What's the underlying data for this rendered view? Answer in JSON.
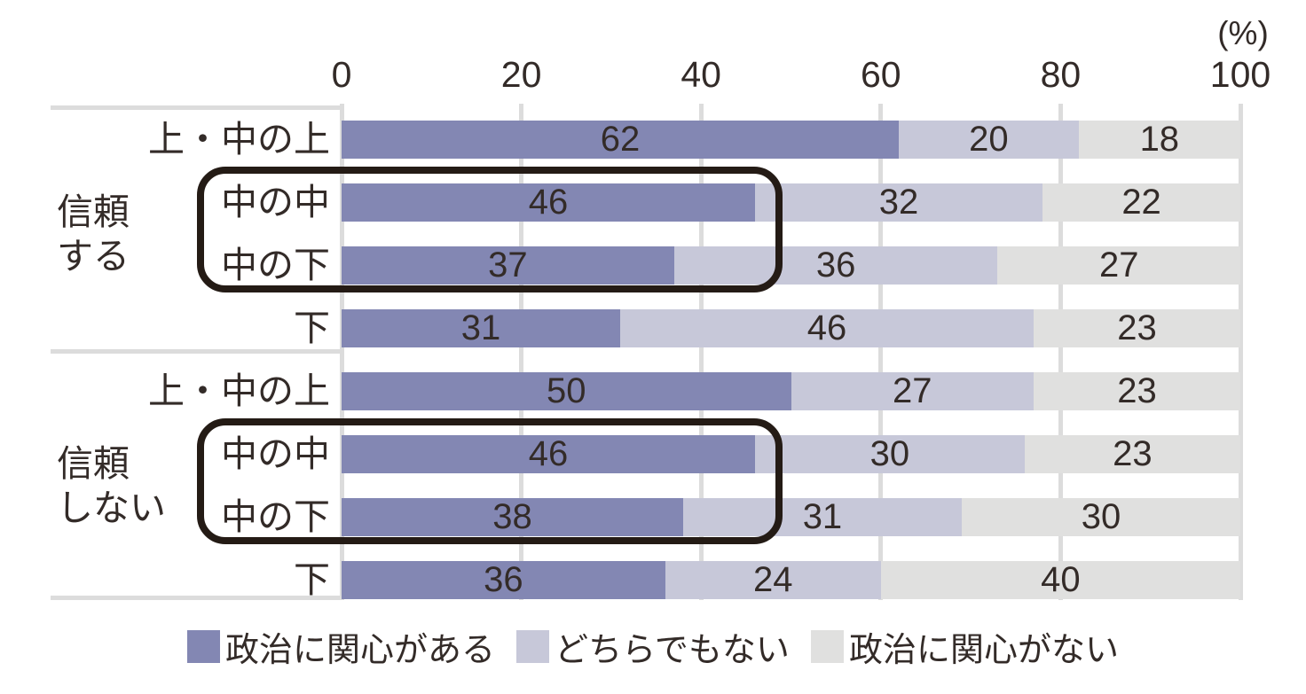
{
  "unit_label": "(%)",
  "colors": {
    "series": [
      "#8387b3",
      "#c7c8d9",
      "#e0e0df"
    ],
    "grid_line": "#dcdcdc",
    "table_line": "#dcdcdc",
    "highlight_box": "#241b15",
    "text": "#332b28",
    "background": "#ffffff"
  },
  "axis": {
    "tick_labels": [
      "0",
      "20",
      "40",
      "60",
      "80",
      "100"
    ]
  },
  "group_labels": [
    {
      "name": "信頼する",
      "lines": [
        "信頼",
        "する"
      ]
    },
    {
      "name": "信頼しない",
      "lines": [
        "信頼",
        "しない"
      ]
    }
  ],
  "legend": {
    "items": [
      {
        "label": "政治に関心がある"
      },
      {
        "label": "どちらでもない"
      },
      {
        "label": "政治に関心がない"
      }
    ]
  },
  "chart_data": {
    "type": "bar",
    "orientation": "horizontal",
    "stacked": true,
    "unit": "%",
    "unit_label": "(%)",
    "xlim": [
      0,
      100
    ],
    "x_ticks": [
      0,
      20,
      40,
      60,
      80,
      100
    ],
    "grid": true,
    "legend_position": "bottom",
    "series_names": [
      "政治に関心がある",
      "どちらでもない",
      "政治に関心がない"
    ],
    "groups": [
      "信頼する",
      "信頼しない"
    ],
    "categories": [
      "上・中の上",
      "中の中",
      "中の下",
      "下"
    ],
    "rows": [
      {
        "group": "信頼する",
        "category": "上・中の上",
        "values": [
          62,
          20,
          18
        ],
        "highlighted": false
      },
      {
        "group": "信頼する",
        "category": "中の中",
        "values": [
          46,
          32,
          22
        ],
        "highlighted": true
      },
      {
        "group": "信頼する",
        "category": "中の下",
        "values": [
          37,
          36,
          27
        ],
        "highlighted": true
      },
      {
        "group": "信頼する",
        "category": "下",
        "values": [
          31,
          46,
          23
        ],
        "highlighted": false
      },
      {
        "group": "信頼しない",
        "category": "上・中の上",
        "values": [
          50,
          27,
          23
        ],
        "highlighted": false
      },
      {
        "group": "信頼しない",
        "category": "中の中",
        "values": [
          46,
          30,
          23
        ],
        "highlighted": true
      },
      {
        "group": "信頼しない",
        "category": "中の下",
        "values": [
          38,
          31,
          30
        ],
        "highlighted": true
      },
      {
        "group": "信頼しない",
        "category": "下",
        "values": [
          36,
          24,
          40
        ],
        "highlighted": false
      }
    ]
  }
}
